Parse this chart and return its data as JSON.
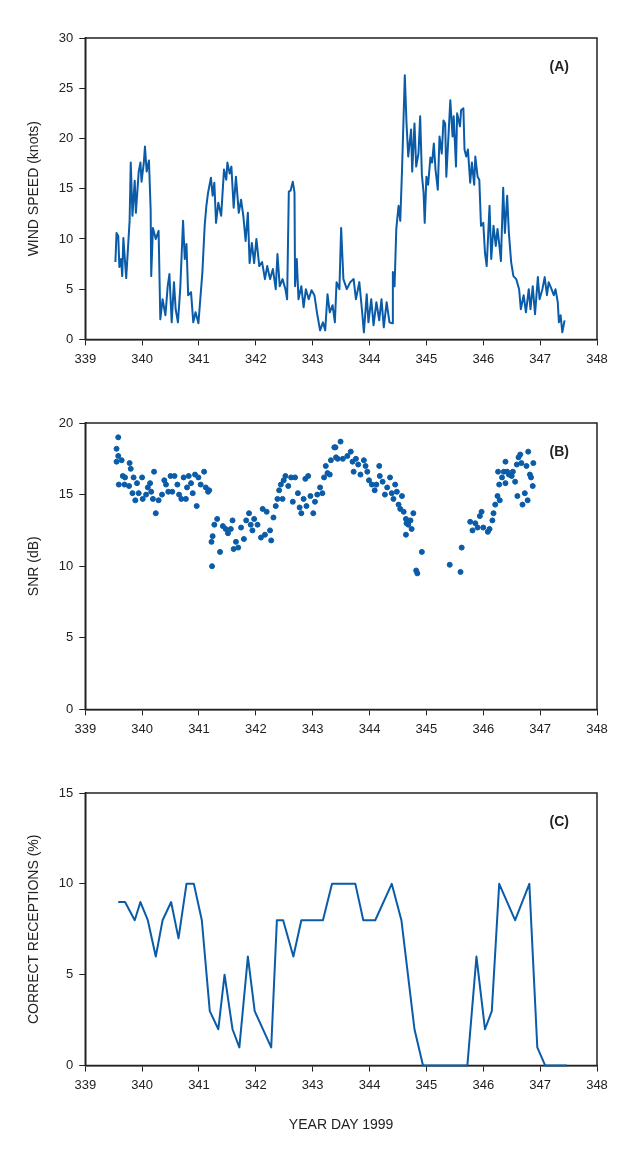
{
  "chart_data": [
    {
      "type": "line",
      "ylabel": "WIND SPEED (knots)",
      "annotations": [
        "(A)"
      ],
      "color": "#0a5ca8",
      "grid": false,
      "legend": false,
      "xlim": [
        339,
        348
      ],
      "xticks": [
        339,
        340,
        341,
        342,
        343,
        344,
        345,
        346,
        347,
        348
      ],
      "ylim": [
        0,
        30
      ],
      "yticks": [
        0,
        5,
        10,
        15,
        20,
        25,
        30
      ],
      "x": [
        339.53,
        339.55,
        339.58,
        339.6,
        339.63,
        339.65,
        339.67,
        339.72,
        339.78,
        339.8,
        339.83,
        339.87,
        339.89,
        339.94,
        339.97,
        339.99,
        340.03,
        340.05,
        340.08,
        340.12,
        340.15,
        340.16,
        340.19,
        340.24,
        340.29,
        340.32,
        340.36,
        340.41,
        340.45,
        340.48,
        340.52,
        340.56,
        340.59,
        340.63,
        340.67,
        340.72,
        340.75,
        340.78,
        340.81,
        340.86,
        340.9,
        340.94,
        340.99,
        341.06,
        341.1,
        341.13,
        341.16,
        341.21,
        341.24,
        341.27,
        341.3,
        341.34,
        341.39,
        341.44,
        341.48,
        341.5,
        341.54,
        341.57,
        341.61,
        341.65,
        341.7,
        341.74,
        341.78,
        341.82,
        341.86,
        341.89,
        341.93,
        341.97,
        342.01,
        342.06,
        342.11,
        342.16,
        342.2,
        342.25,
        342.3,
        342.35,
        342.38,
        342.42,
        342.47,
        342.52,
        342.55,
        342.58,
        342.61,
        342.65,
        342.68,
        342.69,
        342.72,
        342.75,
        342.8,
        342.84,
        342.88,
        342.93,
        342.98,
        343.03,
        343.08,
        343.13,
        343.18,
        343.22,
        343.26,
        343.3,
        343.35,
        343.39,
        343.42,
        343.47,
        343.5,
        343.54,
        343.6,
        343.66,
        343.72,
        343.76,
        343.82,
        343.87,
        343.9,
        343.95,
        343.98,
        344.03,
        344.07,
        344.12,
        344.17,
        344.21,
        344.25,
        344.3,
        344.35,
        344.4,
        344.41,
        344.44,
        344.47,
        344.51,
        344.54,
        344.57,
        344.62,
        344.65,
        344.68,
        344.73,
        344.75,
        344.79,
        344.82,
        344.86,
        344.89,
        344.92,
        344.95,
        344.97,
        345,
        345.03,
        345.07,
        345.1,
        345.13,
        345.16,
        345.2,
        345.23,
        345.27,
        345.3,
        345.33,
        345.35,
        345.39,
        345.42,
        345.46,
        345.48,
        345.52,
        345.54,
        345.59,
        345.61,
        345.65,
        345.67,
        345.7,
        345.73,
        345.77,
        345.8,
        345.84,
        345.86,
        345.9,
        345.93,
        345.96,
        346,
        346.03,
        346.06,
        346.11,
        346.14,
        346.18,
        346.22,
        346.25,
        346.29,
        346.31,
        346.35,
        346.38,
        346.42,
        346.45,
        346.49,
        346.53,
        346.58,
        346.63,
        346.66,
        346.71,
        346.75,
        346.8,
        346.83,
        346.87,
        346.91,
        346.96,
        346.99,
        347.04,
        347.08,
        347.12,
        347.15,
        347.2,
        347.24,
        347.27,
        347.31,
        347.33,
        347.36,
        347.39,
        347.43
      ],
      "values": [
        7.7,
        10.6,
        10.3,
        7.2,
        8,
        6.3,
        10.1,
        6.1,
        11.8,
        17.6,
        12.3,
        15.8,
        12.6,
        16.7,
        17.6,
        15.7,
        17.6,
        19.2,
        16.7,
        17.8,
        12.9,
        6.3,
        11.1,
        10,
        10.8,
        2,
        4,
        2.4,
        5.3,
        6.5,
        1.7,
        5.7,
        3,
        1.7,
        5,
        11.8,
        8,
        9.5,
        4.4,
        4.7,
        1.7,
        2.7,
        1.6,
        6.7,
        11.3,
        13.3,
        14.6,
        16.1,
        14.3,
        15.6,
        11.6,
        13.6,
        12.3,
        16.9,
        15.9,
        17.6,
        16.5,
        17.2,
        13.1,
        16.2,
        12.6,
        13.9,
        12.3,
        9.8,
        12.6,
        7.6,
        9.6,
        7.6,
        10,
        7.3,
        7.7,
        6,
        7.3,
        6,
        7,
        5,
        8.5,
        5.3,
        6,
        5,
        4,
        14.7,
        14.8,
        15.7,
        14.6,
        5.3,
        8,
        4,
        5.3,
        3.2,
        5,
        4,
        4.9,
        4.4,
        2.5,
        0.9,
        1.7,
        0.9,
        4.5,
        2.7,
        3.4,
        1.7,
        5.7,
        5,
        11.1,
        6,
        5,
        5.7,
        6,
        4,
        5.7,
        2.7,
        0.7,
        4.5,
        1.7,
        4,
        1.4,
        3.7,
        1.9,
        4,
        1.2,
        3.7,
        1.7,
        1.6,
        6.7,
        5.3,
        11,
        13.3,
        11.8,
        16.7,
        26.3,
        21.5,
        18.2,
        20.9,
        16.7,
        21.5,
        17.2,
        18.5,
        22.2,
        16.4,
        14.6,
        11.6,
        16.2,
        15.4,
        18.1,
        17.6,
        19.5,
        16.9,
        14.9,
        20.2,
        18.5,
        21.8,
        21.5,
        16.2,
        20.5,
        23.8,
        20.2,
        22.2,
        17.2,
        22.5,
        21.2,
        22.8,
        23,
        18.9,
        18.2,
        18.9,
        15.6,
        17.6,
        15.4,
        18.2,
        16.2,
        15.9,
        11.3,
        11.6,
        8.6,
        7.3,
        13.3,
        8,
        11.3,
        9.3,
        11,
        9,
        7.8,
        15.1,
        10.6,
        14.3,
        10.6,
        7.7,
        6.3,
        6,
        5,
        3,
        4.4,
        2.7,
        5,
        3,
        5.3,
        2.5,
        6.2,
        4,
        5,
        6.2,
        4.4,
        5.7,
        5,
        4.4,
        5,
        3.7,
        1.7,
        2.4,
        0.7,
        1.9
      ]
    },
    {
      "type": "scatter",
      "ylabel": "SNR (dB)",
      "annotations": [
        "(B)"
      ],
      "color": "#0a5ca8",
      "marker": "circle",
      "grid": false,
      "legend": false,
      "xlim": [
        339,
        348
      ],
      "xticks": [
        339,
        340,
        341,
        342,
        343,
        344,
        345,
        346,
        347,
        348
      ],
      "ylim": [
        0,
        20
      ],
      "yticks": [
        0,
        5,
        10,
        15,
        20
      ],
      "x": [
        339.58,
        339.55,
        339.58,
        339.64,
        339.55,
        339.66,
        339.59,
        339.7,
        339.78,
        339.8,
        339.69,
        339.77,
        339.85,
        339.83,
        339.88,
        339.91,
        339.94,
        340,
        340.01,
        340.07,
        340.1,
        340.14,
        340.16,
        340.21,
        340.24,
        340.19,
        340.29,
        340.35,
        340.39,
        340.42,
        340.46,
        340.5,
        340.53,
        340.57,
        340.62,
        340.65,
        340.69,
        340.73,
        340.77,
        340.79,
        340.82,
        340.86,
        340.89,
        340.93,
        340.96,
        340.99,
        341.03,
        341.09,
        341.12,
        341.16,
        341.18,
        341.22,
        341.23,
        341.24,
        341.27,
        341.32,
        341.37,
        341.42,
        341.47,
        341.51,
        341.56,
        341.59,
        341.61,
        341.65,
        341.69,
        341.74,
        341.79,
        341.83,
        341.88,
        341.91,
        341.94,
        341.97,
        342.03,
        342.09,
        342.12,
        342.16,
        342.19,
        342.25,
        342.27,
        342.31,
        342.35,
        342.38,
        342.41,
        342.44,
        342.47,
        342.49,
        342.52,
        342.57,
        342.62,
        342.65,
        342.69,
        342.74,
        342.77,
        342.8,
        342.84,
        342.87,
        342.92,
        342.89,
        342.96,
        343.01,
        343.04,
        343.08,
        343.13,
        343.17,
        343.2,
        343.23,
        343.26,
        343.3,
        343.32,
        343.38,
        343.41,
        343.4,
        343.49,
        343.44,
        343.53,
        343.61,
        343.67,
        343.7,
        343.76,
        343.72,
        343.8,
        343.84,
        343.9,
        343.93,
        343.96,
        343.99,
        344.04,
        344.09,
        344.12,
        344.17,
        344.18,
        344.23,
        344.27,
        344.31,
        344.36,
        344.39,
        344.42,
        344.45,
        344.48,
        344.51,
        344.54,
        344.57,
        344.6,
        344.64,
        344.65,
        344.68,
        344.72,
        344.74,
        344.77,
        344.64,
        344.82,
        344.84,
        344.92,
        345.41,
        345.6,
        345.62,
        345.77,
        345.81,
        345.86,
        345.9,
        345.94,
        345.97,
        346,
        346.08,
        346.11,
        346.16,
        346.18,
        346.21,
        346.25,
        346.29,
        346.28,
        346.33,
        346.26,
        346.36,
        346.39,
        346.39,
        346.42,
        346.45,
        346.5,
        346.52,
        346.56,
        346.59,
        346.6,
        346.62,
        346.65,
        346.67,
        346.69,
        346.73,
        346.76,
        346.78,
        346.79,
        346.82,
        346.84,
        346.87,
        346.88
      ],
      "values": [
        19,
        18.2,
        17.7,
        17.4,
        17.3,
        16.3,
        15.7,
        16.2,
        17.2,
        16.8,
        15.7,
        15.6,
        16.2,
        15.1,
        14.6,
        15.8,
        15.1,
        16.2,
        14.7,
        15,
        15.5,
        15.8,
        15.2,
        16.6,
        13.7,
        14.7,
        14.6,
        15,
        16,
        15.7,
        15.2,
        16.3,
        15.2,
        16.3,
        15.7,
        15,
        14.7,
        16.2,
        14.7,
        15.5,
        16.3,
        15.8,
        15.1,
        16.4,
        14.2,
        16.2,
        15.7,
        16.6,
        15.5,
        15.2,
        15.3,
        11.7,
        10,
        12.1,
        12.9,
        13.3,
        11,
        12.8,
        12.6,
        12.3,
        12.6,
        13.2,
        11.2,
        11.7,
        11.3,
        12.7,
        11.9,
        13.2,
        13.7,
        12.9,
        12.5,
        13.3,
        12.9,
        12,
        14,
        12.2,
        13.8,
        12.5,
        11.8,
        13.4,
        14.2,
        14.7,
        15.3,
        15.7,
        14.7,
        16,
        16.3,
        15.6,
        16.2,
        14.5,
        16.2,
        15.1,
        14.1,
        13.7,
        14.7,
        16.1,
        16.3,
        14.2,
        14.9,
        13.7,
        14.5,
        15,
        15.5,
        15.1,
        16.2,
        17,
        16.5,
        16.4,
        17.4,
        18.3,
        17.6,
        18.3,
        18.7,
        17.5,
        17.5,
        17.7,
        18,
        17.3,
        17.5,
        16.6,
        17.1,
        16.4,
        17.4,
        17,
        16.6,
        16,
        15.7,
        15.3,
        15.7,
        17,
        16.3,
        15.9,
        15,
        15.5,
        16.2,
        15.1,
        14.7,
        15.7,
        15.2,
        14.3,
        14,
        14.9,
        13.8,
        13.3,
        13,
        12.9,
        13.2,
        12.6,
        13.7,
        12.2,
        9.7,
        9.5,
        11,
        10.1,
        9.6,
        11.3,
        13.1,
        12.5,
        13,
        12.7,
        13.5,
        13.8,
        12.7,
        12.4,
        12.6,
        13.2,
        13.7,
        14.3,
        14.9,
        14.6,
        15.7,
        16.2,
        16.6,
        16.6,
        17.3,
        15.8,
        16.6,
        16.4,
        16.3,
        16.6,
        15.9,
        17.1,
        14.9,
        17.6,
        17.8,
        17.2,
        14.3,
        15.1,
        17,
        14.6,
        18,
        16.4,
        16.2,
        15.6,
        17.2
      ]
    },
    {
      "type": "line",
      "ylabel": "CORRECT RECEPTIONS (%)",
      "xlabel": "YEAR DAY 1999",
      "annotations": [
        "(C)"
      ],
      "color": "#0a5ca8",
      "grid": false,
      "legend": false,
      "xlim": [
        339,
        348
      ],
      "xticks": [
        339,
        340,
        341,
        342,
        343,
        344,
        345,
        346,
        347,
        348
      ],
      "ylim": [
        0,
        15
      ],
      "yticks": [
        0,
        5,
        10,
        15
      ],
      "x": [
        339.58,
        339.7,
        339.87,
        339.97,
        340.1,
        340.24,
        340.36,
        340.51,
        340.64,
        340.78,
        340.91,
        341.05,
        341.19,
        341.34,
        341.45,
        341.59,
        341.71,
        341.86,
        341.98,
        342.27,
        342.37,
        342.48,
        342.66,
        342.8,
        343.18,
        343.34,
        343.75,
        343.89,
        344.1,
        344.39,
        344.56,
        344.79,
        344.94,
        345.72,
        345.88,
        346.03,
        346.15,
        346.28,
        346.56,
        346.81,
        346.95,
        347.09,
        347.47
      ],
      "values": [
        9,
        9,
        8,
        9,
        8,
        6,
        8,
        9,
        7,
        10,
        10,
        8,
        3,
        2,
        5,
        2,
        1,
        6,
        3,
        1,
        8,
        8,
        6,
        8,
        8,
        10,
        10,
        8,
        8,
        10,
        8,
        2,
        0,
        0,
        6,
        2,
        3,
        10,
        8,
        10,
        1,
        0,
        0
      ]
    }
  ]
}
